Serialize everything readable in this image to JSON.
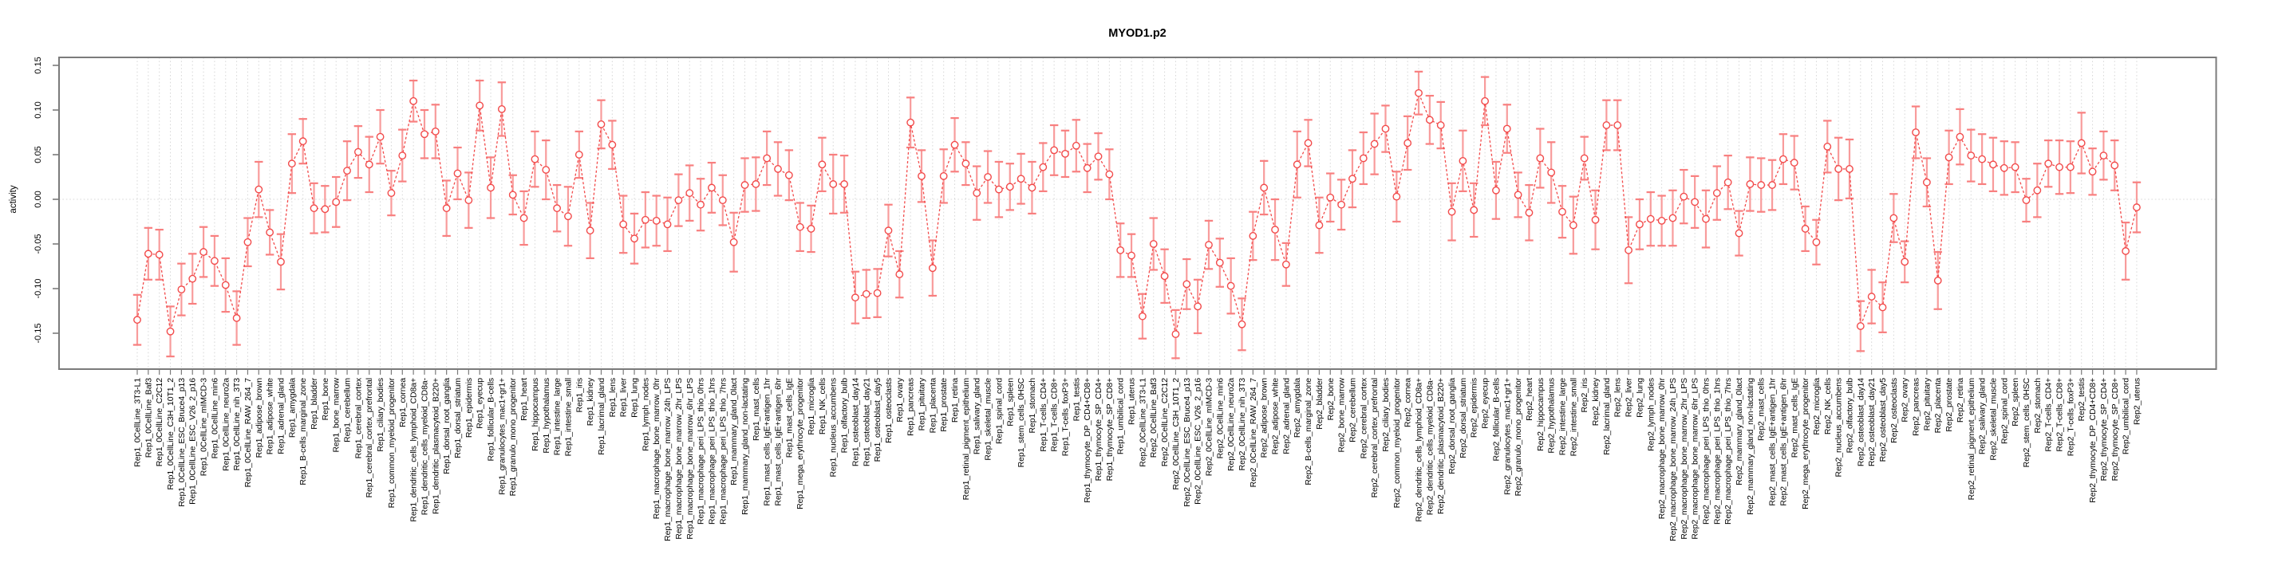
{
  "chart_data": {
    "type": "line",
    "title": "MYOD1.p2",
    "xlabel": "",
    "ylabel": "activity",
    "ylim": [
      -0.19,
      0.158
    ],
    "yticks": [
      "0.15",
      "0.10",
      "0.05",
      "0.00",
      "-0.05",
      "-0.10",
      "-0.15"
    ],
    "ytick_values": [
      0.15,
      0.1,
      0.05,
      0.0,
      -0.05,
      -0.1,
      -0.15
    ],
    "grid": "vertical dotted gridline at every sample, dotted horizontal line at 0",
    "legend": "none",
    "marker": "open-circle",
    "line_style": "dashed",
    "error_bars": true,
    "categories": [
      "Rep1_0CellLine_3T3-L1",
      "Rep1_0CellLine_Baf3",
      "Rep1_0CellLine_C2C12",
      "Rep1_0CellLine_C3H_10T1_2",
      "Rep1_0CellLine_ESC_Bruce4_p13",
      "Rep1_0CellLine_ESC_V26_2_p16",
      "Rep1_0CellLine_mIMCD-3",
      "Rep1_0CellLine_min6",
      "Rep1_0CellLine_neuro2a",
      "Rep1_0CellLine_nih_3T3",
      "Rep1_0CellLine_RAW_264_7",
      "Rep1_adipose_brown",
      "Rep1_adipose_white",
      "Rep1_adrenal_gland",
      "Rep1_amygdala",
      "Rep1_B-cells_marginal_zone",
      "Rep1_bladder",
      "Rep1_bone",
      "Rep1_bone_marrow",
      "Rep1_cerebellum",
      "Rep1_cerebral_cortex",
      "Rep1_cerebral_cortex_prefrontal",
      "Rep1_ciliary_bodies",
      "Rep1_common_myeloid_progenitor",
      "Rep1_cornea",
      "Rep1_dendritic_cells_lymphoid_CD8a+",
      "Rep1_dendritic_cells_myeloid_CD8a-",
      "Rep1_dendritic_plasmacytoid_B220+",
      "Rep1_dorsal_root_ganglia",
      "Rep1_dorsal_striatum",
      "Rep1_epidermis",
      "Rep1_eyecup",
      "Rep1_follicular_B-cells",
      "Rep1_granulocytes_mac1+gr1+",
      "Rep1_granulo_mono_progenitor",
      "Rep1_heart",
      "Rep1_hippocampus",
      "Rep1_hypothalamus",
      "Rep1_intestine_large",
      "Rep1_intestine_small",
      "Rep1_iris",
      "Rep1_kidney",
      "Rep1_lacrimal_gland",
      "Rep1_lens",
      "Rep1_liver",
      "Rep1_lung",
      "Rep1_lymph_nodes",
      "Rep1_macrophage_bone_marrow_0hr",
      "Rep1_macrophage_bone_marrow_24h_LPS",
      "Rep1_macrophage_bone_marrow_2hr_LPS",
      "Rep1_macrophage_bone_marrow_6hr_LPS",
      "Rep1_macrophage_peri_LPS_thio_0hrs",
      "Rep1_macrophage_peri_LPS_thio_1hrs",
      "Rep1_macrophage_peri_LPS_thio_7hrs",
      "Rep1_mammary_gland_0lact",
      "Rep1_mammary_gland_non-lactating",
      "Rep1_mast_cells",
      "Rep1_mast_cells_IgE+antigen_1hr",
      "Rep1_mast_cells_IgE+antigen_6hr",
      "Rep1_mast_cells_IgE",
      "Rep1_mega_erythrocyte_progenitor",
      "Rep1_microglia",
      "Rep1_NK_cells",
      "Rep1_nucleus_accumbens",
      "Rep1_olfactory_bulb",
      "Rep1_osteoblast_day14",
      "Rep1_osteoblast_day21",
      "Rep1_osteoblast_day5",
      "Rep1_osteoclasts",
      "Rep1_ovary",
      "Rep1_pancreas",
      "Rep1_pituitary",
      "Rep1_placenta",
      "Rep1_prostate",
      "Rep1_retina",
      "Rep1_retinal_pigment_epithelium",
      "Rep1_salivary_gland",
      "Rep1_skeletal_muscle",
      "Rep1_spinal_cord",
      "Rep1_spleen",
      "Rep1_stem_cells_0HSC",
      "Rep1_stomach",
      "Rep1_T-cells_CD4+",
      "Rep1_T-cells_CD8+",
      "Rep1_T-cells_foxP3+",
      "Rep1_testis",
      "Rep1_thymocyte_DP_CD4+CD8+",
      "Rep1_thymocyte_SP_CD4+",
      "Rep1_thymocyte_SP_CD8+",
      "Rep1_umbilical_cord",
      "Rep1_uterus",
      "Rep2_0CellLine_3T3-L1",
      "Rep2_0CellLine_Baf3",
      "Rep2_0CellLine_C2C12",
      "Rep2_0CellLine_C3H_10T1_2",
      "Rep2_0CellLine_ESC_Bruce4_p13",
      "Rep2_0CellLine_ESC_V26_2_p16",
      "Rep2_0CellLine_mIMCD-3",
      "Rep2_0CellLine_min6",
      "Rep2_0CellLine_neuro2a",
      "Rep2_0CellLine_nih_3T3",
      "Rep2_0CellLine_RAW_264_7",
      "Rep2_adipose_brown",
      "Rep2_adipose_white",
      "Rep2_adrenal_gland",
      "Rep2_amygdala",
      "Rep2_B-cells_marginal_zone",
      "Rep2_bladder",
      "Rep2_bone",
      "Rep2_bone_marrow",
      "Rep2_cerebellum",
      "Rep2_cerebral_cortex",
      "Rep2_cerebral_cortex_prefrontal",
      "Rep2_ciliary_bodies",
      "Rep2_common_myeloid_progenitor",
      "Rep2_cornea",
      "Rep2_dendritic_cells_lymphoid_CD8a+",
      "Rep2_dendritic_cells_myeloid_CD8a-",
      "Rep2_dendritic_plasmacytoid_B220+",
      "Rep2_dorsal_root_ganglia",
      "Rep2_dorsal_striatum",
      "Rep2_epidermis",
      "Rep2_eyecup",
      "Rep2_follicular_B-cells",
      "Rep2_granulocytes_mac1+gr1+",
      "Rep2_granulo_mono_progenitor",
      "Rep2_heart",
      "Rep2_hippocampus",
      "Rep2_hypothalamus",
      "Rep2_intestine_large",
      "Rep2_intestine_small",
      "Rep2_iris",
      "Rep2_kidney",
      "Rep2_lacrimal_gland",
      "Rep2_lens",
      "Rep2_liver",
      "Rep2_lung",
      "Rep2_lymph_nodes",
      "Rep2_macrophage_bone_marrow_0hr",
      "Rep2_macrophage_bone_marrow_24h_LPS",
      "Rep2_macrophage_bone_marrow_2hr_LPS",
      "Rep2_macrophage_bone_marrow_6hr_LPS",
      "Rep2_macrophage_peri_LPS_thio_0hrs",
      "Rep2_macrophage_peri_LPS_thio_1hrs",
      "Rep2_macrophage_peri_LPS_thio_7hrs",
      "Rep2_mammary_gland_0lact",
      "Rep2_mammary_gland_non-lactating",
      "Rep2_mast_cells",
      "Rep2_mast_cells_IgE+antigen_1hr",
      "Rep2_mast_cells_IgE+antigen_6hr",
      "Rep2_mast_cells_IgE",
      "Rep2_mega_erythrocyte_progenitor",
      "Rep2_microglia",
      "Rep2_NK_cells",
      "Rep2_nucleus_accumbens",
      "Rep2_olfactory_bulb",
      "Rep2_osteoblast_day14",
      "Rep2_osteoblast_day21",
      "Rep2_osteoblast_day5",
      "Rep2_osteoclasts",
      "Rep2_ovary",
      "Rep2_pancreas",
      "Rep2_pituitary",
      "Rep2_placenta",
      "Rep2_prostate",
      "Rep2_retina",
      "Rep2_retinal_pigment_epithelium",
      "Rep2_salivary_gland",
      "Rep2_skeletal_muscle",
      "Rep2_spinal_cord",
      "Rep2_spleen",
      "Rep2_stem_cells_0HSC",
      "Rep2_stomach",
      "Rep2_T-cells_CD4+",
      "Rep2_T-cells_CD8+",
      "Rep2_T-cells_foxP3+",
      "Rep2_testis",
      "Rep2_thymocyte_DP_CD4+CD8+",
      "Rep2_thymocyte_SP_CD4+",
      "Rep2_thymocyte_SP_CD8+",
      "Rep2_umbilical_cord",
      "Rep2_uterus"
    ],
    "values": [
      -0.135,
      -0.061,
      -0.062,
      -0.148,
      -0.101,
      -0.089,
      -0.059,
      -0.069,
      -0.096,
      -0.133,
      -0.048,
      0.011,
      -0.037,
      -0.07,
      0.04,
      0.065,
      -0.01,
      -0.011,
      -0.003,
      0.032,
      0.053,
      0.039,
      0.07,
      0.007,
      0.049,
      0.11,
      0.073,
      0.076,
      -0.01,
      0.029,
      -0.001,
      0.105,
      0.013,
      0.101,
      0.005,
      -0.021,
      0.045,
      0.033,
      -0.01,
      -0.019,
      0.05,
      -0.035,
      0.084,
      0.061,
      -0.028,
      -0.044,
      -0.023,
      -0.024,
      -0.028,
      -0.001,
      0.007,
      -0.006,
      0.013,
      -0.001,
      -0.048,
      0.016,
      0.017,
      0.046,
      0.034,
      0.027,
      -0.031,
      -0.033,
      0.039,
      0.017,
      0.017,
      -0.11,
      -0.106,
      -0.105,
      -0.035,
      -0.084,
      0.086,
      0.026,
      -0.077,
      0.026,
      0.061,
      0.04,
      0.007,
      0.025,
      0.011,
      0.014,
      0.023,
      0.013,
      0.036,
      0.055,
      0.051,
      0.06,
      0.035,
      0.048,
      0.028,
      -0.057,
      -0.063,
      -0.131,
      -0.05,
      -0.086,
      -0.151,
      -0.095,
      -0.12,
      -0.051,
      -0.071,
      -0.097,
      -0.14,
      -0.041,
      0.013,
      -0.034,
      -0.073,
      0.039,
      0.063,
      -0.029,
      0.002,
      -0.006,
      0.023,
      0.046,
      0.062,
      0.079,
      0.003,
      0.063,
      0.119,
      0.089,
      0.083,
      -0.014,
      0.043,
      -0.012,
      0.11,
      0.01,
      0.079,
      0.005,
      -0.015,
      0.046,
      0.03,
      -0.014,
      -0.029,
      0.046,
      -0.023,
      0.083,
      0.083,
      -0.057,
      -0.028,
      -0.022,
      -0.024,
      -0.021,
      0.003,
      -0.003,
      -0.022,
      0.007,
      0.019,
      -0.038,
      0.017,
      0.016,
      0.016,
      0.045,
      0.041,
      -0.033,
      -0.048,
      0.059,
      0.034,
      0.034,
      -0.142,
      -0.109,
      -0.121,
      -0.021,
      -0.07,
      0.075,
      0.019,
      -0.091,
      0.047,
      0.07,
      0.049,
      0.045,
      0.039,
      0.035,
      0.036,
      -0.001,
      0.01,
      0.04,
      0.036,
      0.036,
      0.063,
      0.031,
      0.049,
      0.038,
      -0.058,
      -0.009
    ],
    "errors": [
      0.028,
      0.029,
      0.028,
      0.028,
      0.029,
      0.028,
      0.028,
      0.028,
      0.03,
      0.03,
      0.027,
      0.031,
      0.025,
      0.031,
      0.033,
      0.025,
      0.028,
      0.026,
      0.028,
      0.033,
      0.029,
      0.031,
      0.03,
      0.025,
      0.029,
      0.023,
      0.027,
      0.03,
      0.031,
      0.029,
      0.031,
      0.028,
      0.034,
      0.03,
      0.022,
      0.03,
      0.031,
      0.033,
      0.026,
      0.033,
      0.026,
      0.031,
      0.027,
      0.027,
      0.032,
      0.028,
      0.031,
      0.028,
      0.03,
      0.029,
      0.031,
      0.029,
      0.028,
      0.028,
      0.033,
      0.03,
      0.03,
      0.03,
      0.03,
      0.028,
      0.027,
      0.026,
      0.03,
      0.033,
      0.032,
      0.029,
      0.027,
      0.027,
      0.029,
      0.026,
      0.028,
      0.029,
      0.031,
      0.03,
      0.03,
      0.024,
      0.03,
      0.029,
      0.031,
      0.026,
      0.028,
      0.029,
      0.027,
      0.028,
      0.026,
      0.029,
      0.027,
      0.026,
      0.028,
      0.03,
      0.024,
      0.025,
      0.029,
      0.03,
      0.027,
      0.028,
      0.03,
      0.027,
      0.027,
      0.031,
      0.029,
      0.027,
      0.03,
      0.034,
      0.024,
      0.037,
      0.026,
      0.031,
      0.027,
      0.028,
      0.032,
      0.029,
      0.034,
      0.026,
      0.028,
      0.03,
      0.024,
      0.027,
      0.026,
      0.032,
      0.034,
      0.03,
      0.027,
      0.032,
      0.027,
      0.025,
      0.031,
      0.033,
      0.034,
      0.029,
      0.032,
      0.024,
      0.033,
      0.028,
      0.028,
      0.037,
      0.028,
      0.03,
      0.028,
      0.031,
      0.03,
      0.029,
      0.032,
      0.03,
      0.03,
      0.025,
      0.03,
      0.03,
      0.028,
      0.028,
      0.03,
      0.025,
      0.025,
      0.029,
      0.035,
      0.033,
      0.028,
      0.03,
      0.028,
      0.027,
      0.023,
      0.029,
      0.027,
      0.032,
      0.03,
      0.031,
      0.029,
      0.028,
      0.03,
      0.03,
      0.028,
      0.024,
      0.03,
      0.026,
      0.03,
      0.029,
      0.034,
      0.026,
      0.027,
      0.028,
      0.032,
      0.028
    ],
    "colors": {
      "series": "#f24b4b",
      "marker_fill": "#ffffff",
      "error_bar": "#f89c9c",
      "error_cap": "#f87f7f",
      "grid": "#d8d8d8",
      "frame": "#7b7b7b",
      "text": "#000000",
      "background": "#ffffff"
    }
  }
}
